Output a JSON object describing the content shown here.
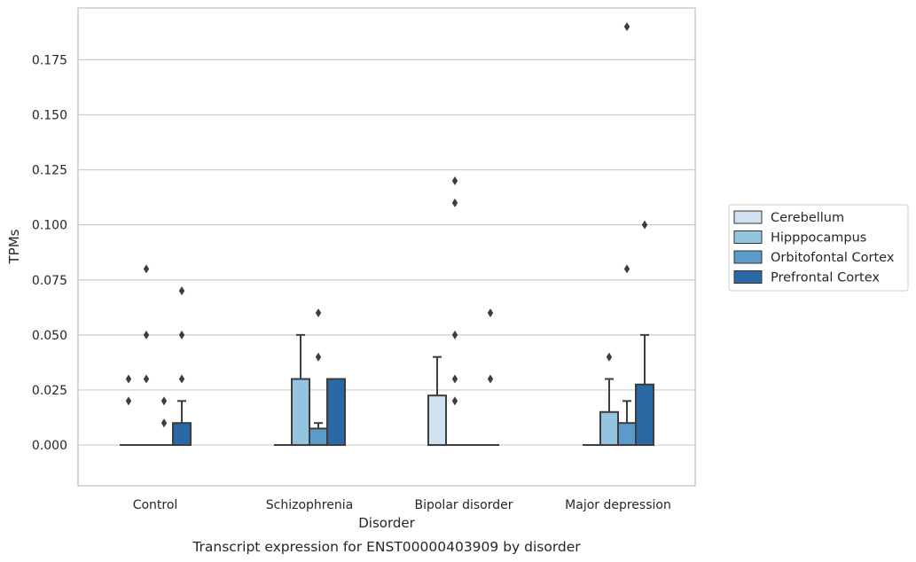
{
  "chart_data": {
    "type": "box",
    "title": "",
    "caption": "Transcript expression for ENST00000403909 by disorder",
    "xlabel": "Disorder",
    "ylabel": "TPMs",
    "ylim": [
      -0.0185,
      0.1985
    ],
    "yticks": [
      0.0,
      0.025,
      0.05,
      0.075,
      0.1,
      0.125,
      0.15,
      0.175
    ],
    "ytick_labels": [
      "0.000",
      "0.025",
      "0.050",
      "0.075",
      "0.100",
      "0.125",
      "0.150",
      "0.175"
    ],
    "grid": "horizontal",
    "legend_position": "right",
    "categories": [
      "Control",
      "Schizophrenia",
      "Bipolar disorder",
      "Major depression"
    ],
    "series": [
      {
        "name": "Cerebellum",
        "color": "#d0e1f2",
        "boxes": [
          {
            "q1": 0,
            "median": 0,
            "q3": 0,
            "whislo": 0,
            "whishi": 0,
            "outliers": [
              0.02,
              0.03
            ]
          },
          {
            "q1": 0,
            "median": 0,
            "q3": 0,
            "whislo": 0,
            "whishi": 0,
            "outliers": []
          },
          {
            "q1": 0,
            "median": 0,
            "q3": 0.0225,
            "whislo": 0,
            "whishi": 0.04,
            "outliers": []
          },
          {
            "q1": 0,
            "median": 0,
            "q3": 0,
            "whislo": 0,
            "whishi": 0,
            "outliers": []
          }
        ]
      },
      {
        "name": "Hipppocampus",
        "color": "#94c4df",
        "boxes": [
          {
            "q1": 0,
            "median": 0,
            "q3": 0,
            "whislo": 0,
            "whishi": 0,
            "outliers": [
              0.03,
              0.05,
              0.08
            ]
          },
          {
            "q1": 0,
            "median": 0,
            "q3": 0.03,
            "whislo": 0,
            "whishi": 0.05,
            "outliers": []
          },
          {
            "q1": 0,
            "median": 0,
            "q3": 0,
            "whislo": 0,
            "whishi": 0,
            "outliers": [
              0.02,
              0.03,
              0.05,
              0.11,
              0.12
            ]
          },
          {
            "q1": 0,
            "median": 0,
            "q3": 0.015,
            "whislo": 0,
            "whishi": 0.03,
            "outliers": [
              0.04
            ]
          }
        ]
      },
      {
        "name": "Orbitofontal Cortex",
        "color": "#5b9bc9",
        "boxes": [
          {
            "q1": 0,
            "median": 0,
            "q3": 0,
            "whislo": 0,
            "whishi": 0,
            "outliers": [
              0.01,
              0.02
            ]
          },
          {
            "q1": 0,
            "median": 0,
            "q3": 0.0075,
            "whislo": 0,
            "whishi": 0.01,
            "outliers": [
              0.04,
              0.06
            ]
          },
          {
            "q1": 0,
            "median": 0,
            "q3": 0,
            "whislo": 0,
            "whishi": 0,
            "outliers": []
          },
          {
            "q1": 0,
            "median": 0,
            "q3": 0.01,
            "whislo": 0,
            "whishi": 0.02,
            "outliers": [
              0.08,
              0.19
            ]
          }
        ]
      },
      {
        "name": "Prefrontal Cortex",
        "color": "#2a68a6",
        "boxes": [
          {
            "q1": 0,
            "median": 0,
            "q3": 0.01,
            "whislo": 0,
            "whishi": 0.02,
            "outliers": [
              0.03,
              0.05,
              0.07
            ]
          },
          {
            "q1": 0,
            "median": 0,
            "q3": 0.03,
            "whislo": 0,
            "whishi": 0.03,
            "outliers": []
          },
          {
            "q1": 0,
            "median": 0,
            "q3": 0,
            "whislo": 0,
            "whishi": 0,
            "outliers": [
              0.03,
              0.06
            ]
          },
          {
            "q1": 0,
            "median": 0,
            "q3": 0.0275,
            "whislo": 0,
            "whishi": 0.05,
            "outliers": [
              0.1
            ]
          }
        ]
      }
    ]
  }
}
